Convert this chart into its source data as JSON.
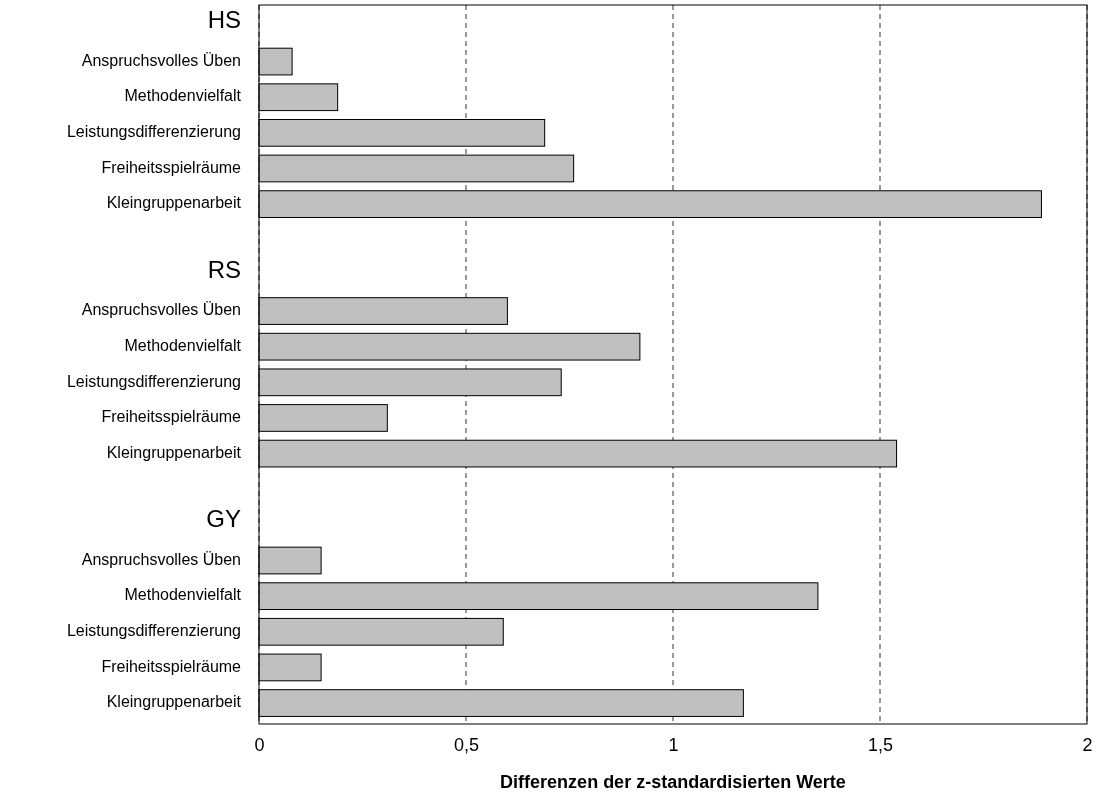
{
  "chart_data": {
    "type": "bar",
    "orientation": "horizontal",
    "xlabel": "Differenzen der z-standardisierten Werte",
    "categories": [
      "HS",
      "Anspruchsvolles Üben",
      "Methodenvielfalt",
      "Leistungsdifferenzierung",
      "Freiheitsspielräume",
      "Kleingruppenarbeit",
      null,
      "RS",
      "Anspruchsvolles Üben",
      "Methodenvielfalt",
      "Leistungsdifferenzierung",
      "Freiheitsspielräume",
      "Kleingruppenarbeit",
      null,
      "GY",
      "Anspruchsvolles Üben",
      "Methodenvielfalt",
      "Leistungsdifferenzierung",
      "Freiheitsspielräume",
      "Kleingruppenarbeit"
    ],
    "values": [
      null,
      0.08,
      0.19,
      0.69,
      0.76,
      1.89,
      null,
      null,
      0.6,
      0.92,
      0.73,
      0.31,
      1.54,
      null,
      null,
      0.15,
      1.35,
      0.59,
      0.15,
      1.17
    ],
    "color": "#c0c0c0",
    "xlim": [
      0,
      2
    ],
    "xticks": [
      0,
      {
        "value": 0.5,
        "label": "0,5"
      },
      1,
      {
        "value": 1.5,
        "label": "1,5"
      },
      2
    ],
    "grid": "x"
  }
}
